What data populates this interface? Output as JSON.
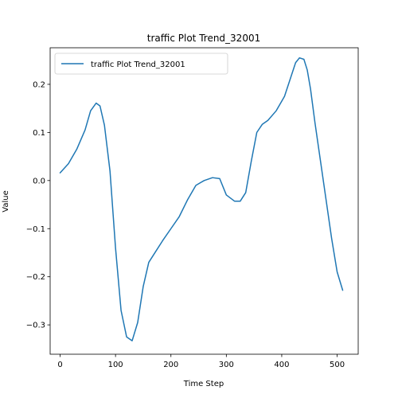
{
  "chart_data": {
    "type": "line",
    "title": "traffic Plot Trend_32001",
    "xlabel": "Time Step",
    "ylabel": "Value",
    "xlim": [
      -18,
      538
    ],
    "ylim": [
      -0.361,
      0.276
    ],
    "xticks": [
      0,
      100,
      200,
      300,
      400,
      500
    ],
    "yticks": [
      -0.3,
      -0.2,
      -0.1,
      0.0,
      0.1,
      0.2
    ],
    "ytick_labels": [
      "−0.3",
      "−0.2",
      "−0.1",
      "0.0",
      "0.1",
      "0.2"
    ],
    "legend_position": "upper-left",
    "grid": false,
    "series": [
      {
        "name": "traffic Plot Trend_32001",
        "color": "#1f77b4",
        "x": [
          0,
          15,
          30,
          45,
          55,
          65,
          72,
          80,
          90,
          100,
          110,
          120,
          130,
          140,
          150,
          160,
          170,
          185,
          200,
          215,
          230,
          245,
          260,
          275,
          288,
          300,
          315,
          325,
          335,
          345,
          355,
          365,
          375,
          390,
          405,
          415,
          425,
          432,
          440,
          446,
          452,
          460,
          470,
          480,
          490,
          500,
          510
        ],
        "y": [
          0.016,
          0.035,
          0.065,
          0.105,
          0.145,
          0.161,
          0.155,
          0.115,
          0.02,
          -0.14,
          -0.27,
          -0.325,
          -0.333,
          -0.295,
          -0.22,
          -0.17,
          -0.152,
          -0.125,
          -0.1,
          -0.075,
          -0.04,
          -0.01,
          0.0,
          0.006,
          0.004,
          -0.03,
          -0.043,
          -0.043,
          -0.025,
          0.04,
          0.1,
          0.117,
          0.125,
          0.145,
          0.175,
          0.21,
          0.245,
          0.255,
          0.252,
          0.23,
          0.19,
          0.12,
          0.04,
          -0.04,
          -0.12,
          -0.19,
          -0.228
        ]
      }
    ]
  }
}
